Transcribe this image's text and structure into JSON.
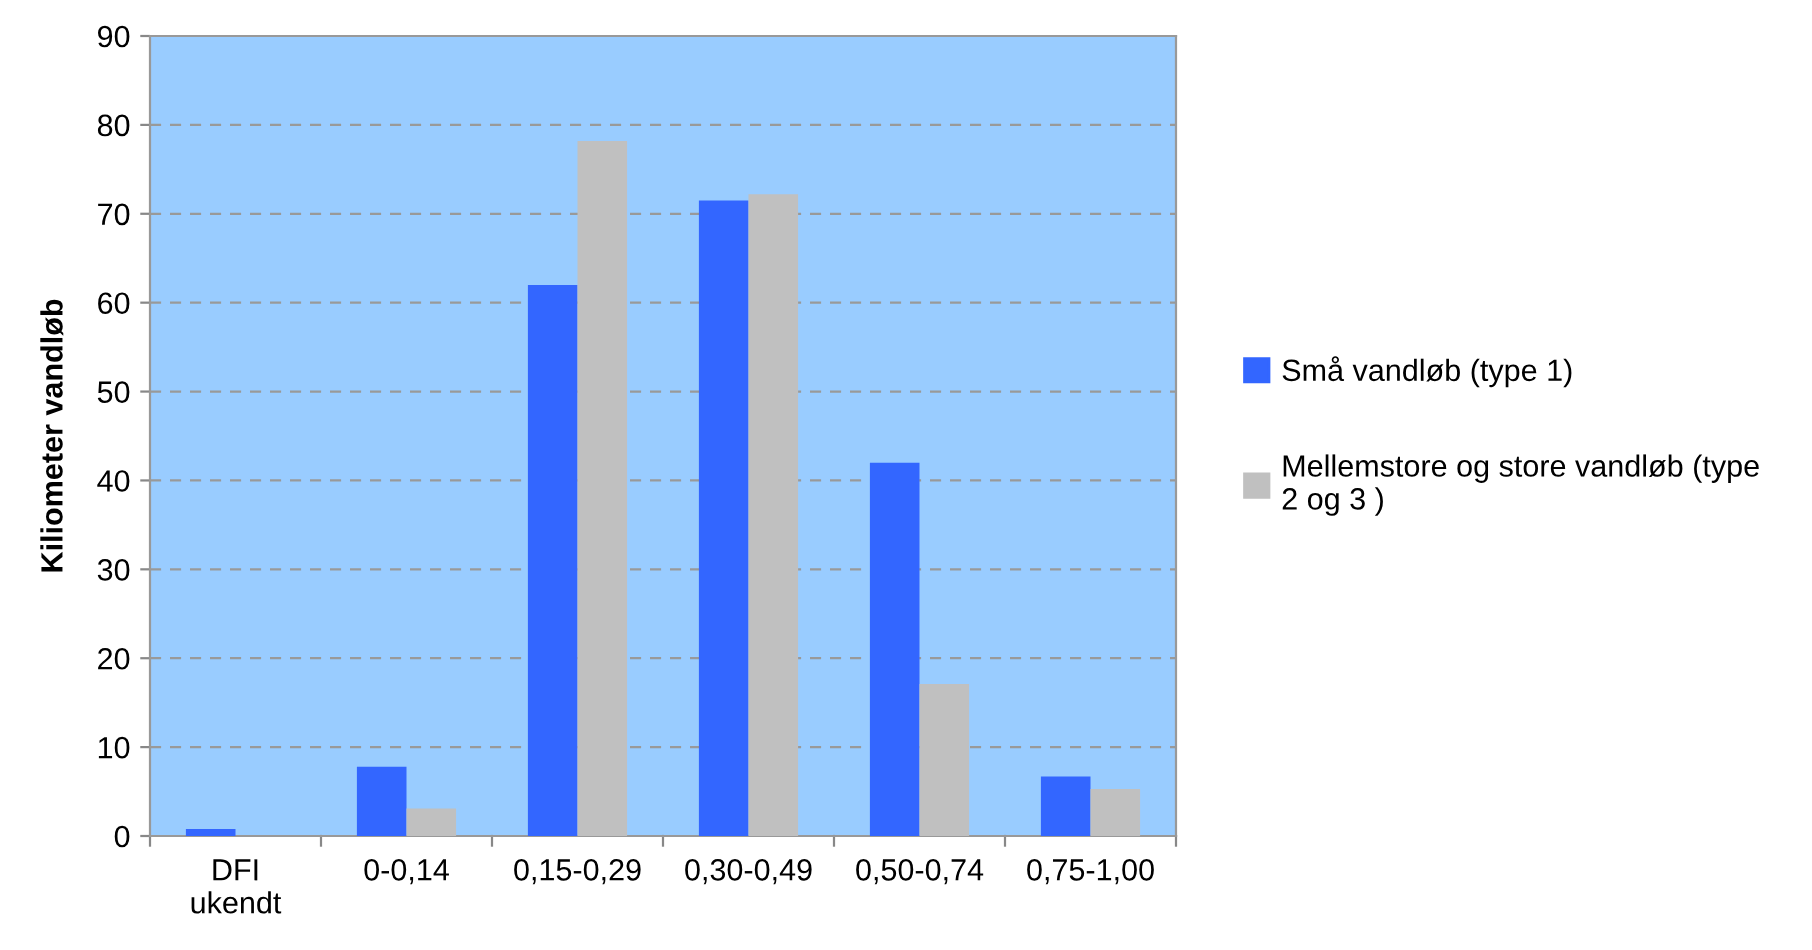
{
  "chart_data": {
    "type": "bar",
    "ylabel": "Kiliometer vandløb",
    "categories": [
      "DFI\nukendt",
      "0-0,14",
      "0,15-0,29",
      "0,30-0,49",
      "0,50-0,74",
      "0,75-1,00"
    ],
    "series": [
      {
        "name": "Små vandløb (type 1)",
        "color": "#3366ff",
        "values": [
          0.8,
          7.8,
          62,
          71.5,
          42,
          6.7
        ]
      },
      {
        "name": "Mellemstore og store vandløb (type\n2 og 3 )",
        "color": "#c0c0c0",
        "values": [
          null,
          3.1,
          78.2,
          72.2,
          17.1,
          5.3
        ]
      }
    ],
    "ylim": [
      0,
      90
    ],
    "yticks": [
      0,
      10,
      20,
      30,
      40,
      50,
      60,
      70,
      80,
      90
    ],
    "grid": "y",
    "legend": "right"
  }
}
